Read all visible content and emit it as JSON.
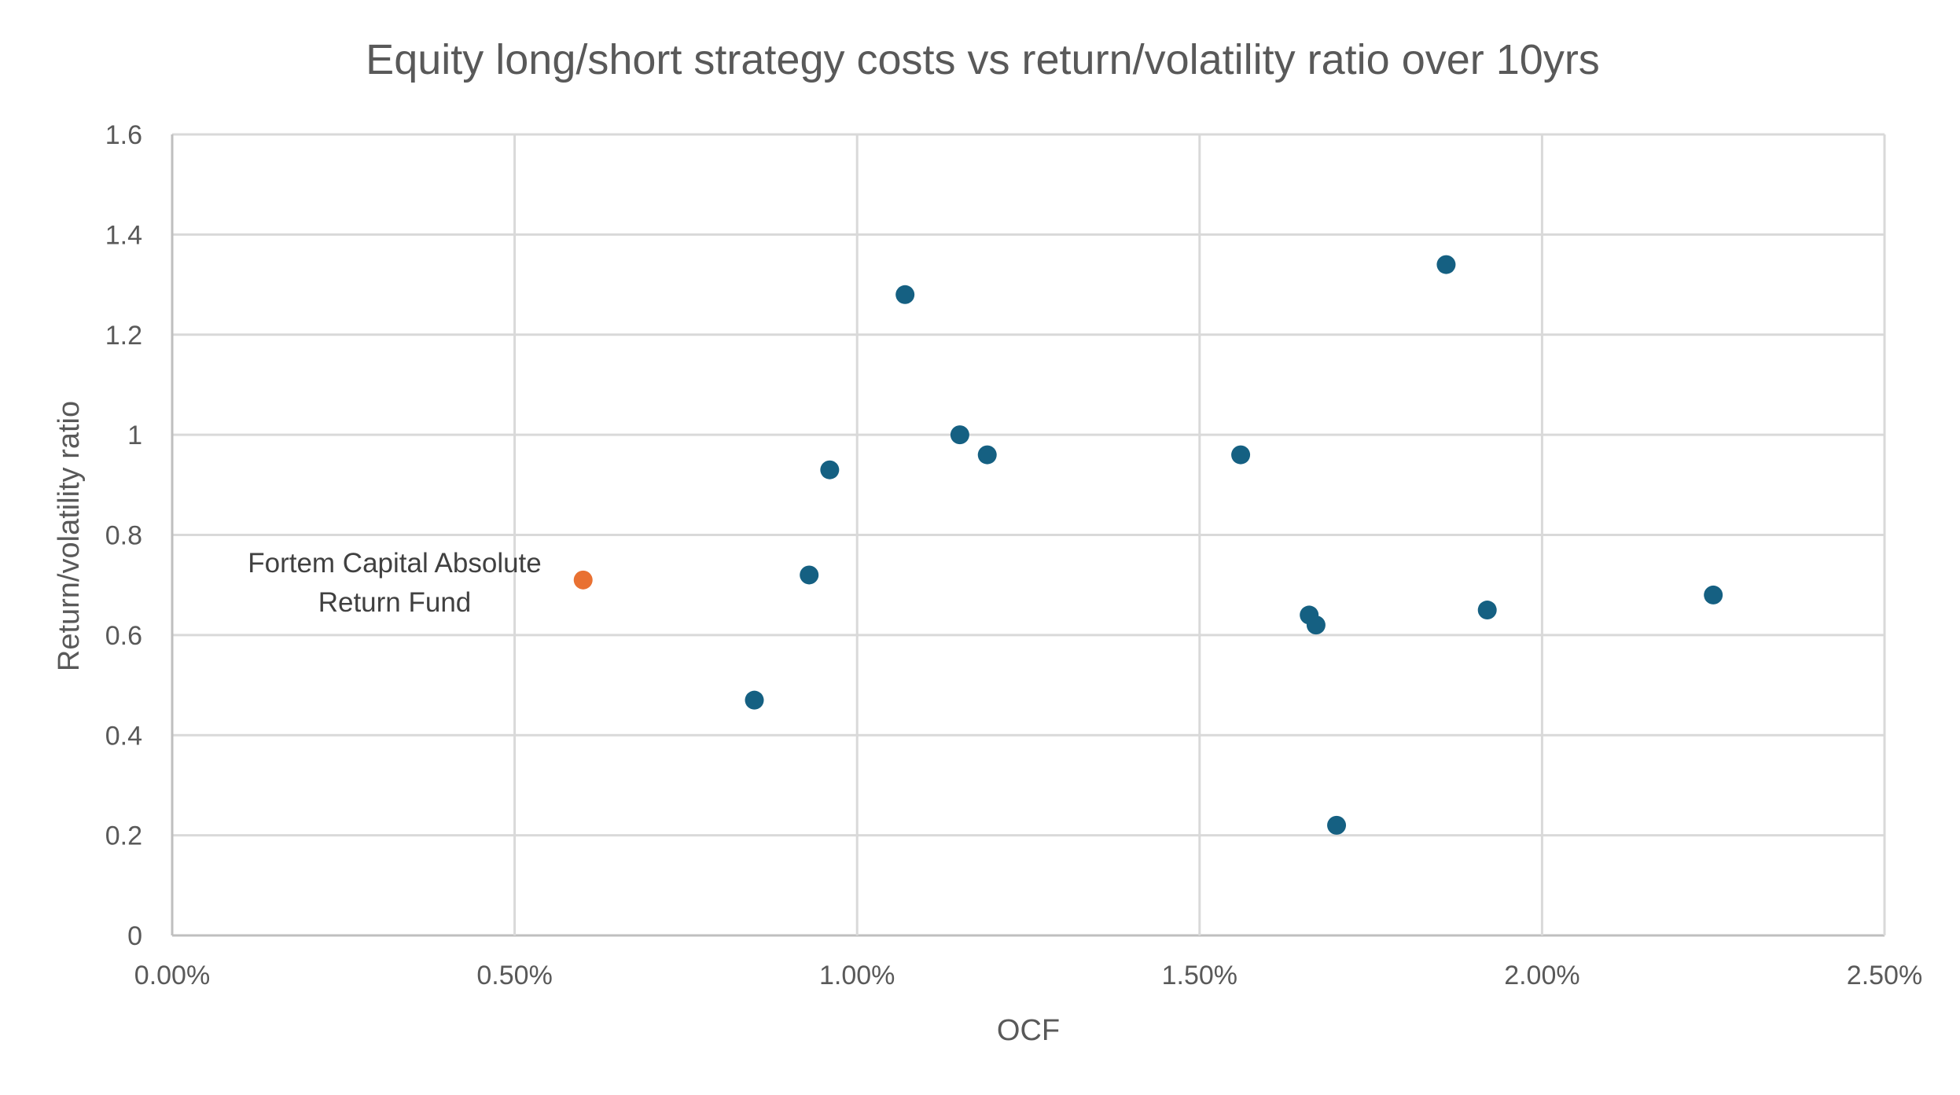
{
  "chart_data": {
    "type": "scatter",
    "title": "Equity long/short strategy costs vs return/volatility ratio over 10yrs",
    "xlabel": "OCF",
    "ylabel": "Return/volatility ratio",
    "xlim": [
      0,
      0.025
    ],
    "ylim": [
      0,
      1.6
    ],
    "x_ticks": [
      0,
      0.005,
      0.01,
      0.015,
      0.02,
      0.025
    ],
    "x_tick_labels": [
      "0.00%",
      "0.50%",
      "1.00%",
      "1.50%",
      "2.00%",
      "2.50%"
    ],
    "y_ticks": [
      0,
      0.2,
      0.4,
      0.6,
      0.8,
      1,
      1.2,
      1.4,
      1.6
    ],
    "y_tick_labels": [
      "0",
      "0.2",
      "0.4",
      "0.6",
      "0.8",
      "1",
      "1.2",
      "1.4",
      "1.6"
    ],
    "grid": true,
    "colors": {
      "default": "#156082",
      "highlight": "#e97132"
    },
    "points": [
      {
        "x": 0.006,
        "y": 0.71,
        "highlight": true
      },
      {
        "x": 0.0085,
        "y": 0.47
      },
      {
        "x": 0.0093,
        "y": 0.72
      },
      {
        "x": 0.0096,
        "y": 0.93
      },
      {
        "x": 0.0107,
        "y": 1.28
      },
      {
        "x": 0.0115,
        "y": 1.0
      },
      {
        "x": 0.0119,
        "y": 0.96
      },
      {
        "x": 0.0156,
        "y": 0.96
      },
      {
        "x": 0.0166,
        "y": 0.64
      },
      {
        "x": 0.0167,
        "y": 0.62
      },
      {
        "x": 0.017,
        "y": 0.22
      },
      {
        "x": 0.0186,
        "y": 1.34
      },
      {
        "x": 0.0192,
        "y": 0.65
      },
      {
        "x": 0.0225,
        "y": 0.68
      }
    ],
    "annotation": {
      "line1": "Fortem Capital Absolute",
      "line2": "Return Fund"
    }
  }
}
